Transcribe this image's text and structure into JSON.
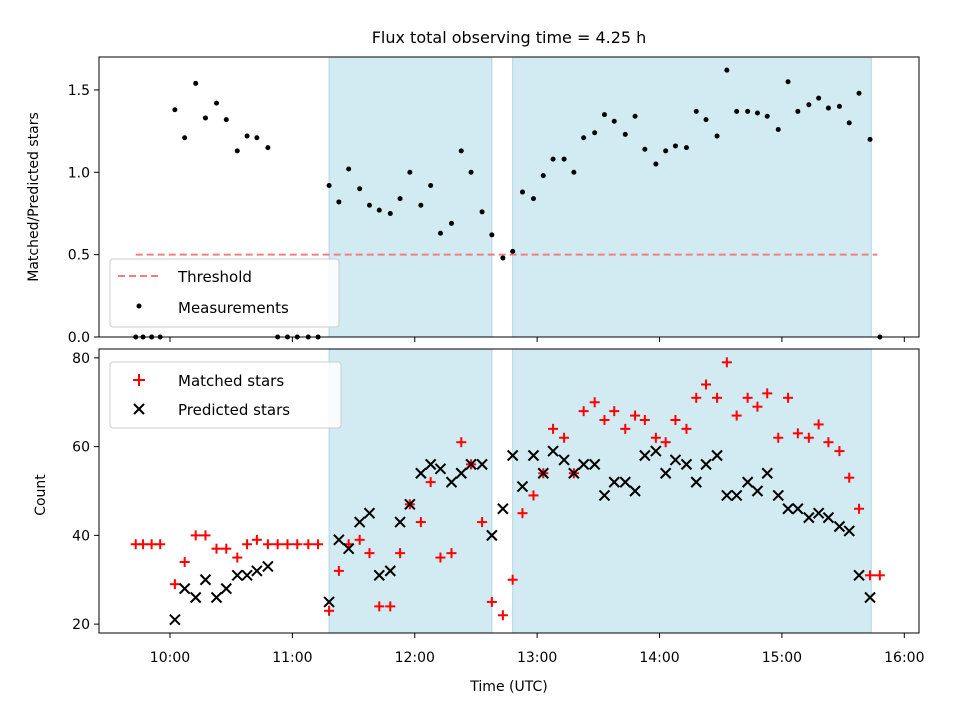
{
  "chart_data": [
    {
      "type": "scatter",
      "title": "Flux total observing time = 4.25 h",
      "ylabel": "Matched/Predicted stars",
      "xlim": [
        9.42,
        16.12
      ],
      "ylim": [
        0,
        1.7
      ],
      "x_ticks": [
        10,
        11,
        12,
        13,
        14,
        15,
        16
      ],
      "y_ticks": [
        0.0,
        0.5,
        1.0,
        1.5
      ],
      "y_tick_labels": [
        "0.0",
        "0.5",
        "1.0",
        "1.5"
      ],
      "shaded_intervals": [
        [
          11.3,
          12.63
        ],
        [
          12.8,
          15.73
        ]
      ],
      "shade_color": "#add8e6",
      "legend": {
        "location": "lower-left",
        "threshold_label": "Threshold",
        "measurements_label": "Measurements"
      },
      "threshold": {
        "value": 0.5,
        "x_start": 9.72,
        "x_end": 15.78,
        "color": "#f08080"
      },
      "measurements": {
        "color": "#000000",
        "x": [
          9.72,
          9.78,
          9.85,
          9.92,
          10.04,
          10.12,
          10.21,
          10.29,
          10.38,
          10.46,
          10.55,
          10.63,
          10.71,
          10.8,
          10.88,
          10.96,
          11.04,
          11.13,
          11.21,
          11.3,
          11.38,
          11.46,
          11.55,
          11.63,
          11.71,
          11.8,
          11.88,
          11.96,
          12.05,
          12.13,
          12.21,
          12.3,
          12.38,
          12.46,
          12.55,
          12.63,
          12.72,
          12.8,
          12.88,
          12.97,
          13.05,
          13.13,
          13.22,
          13.3,
          13.38,
          13.47,
          13.55,
          13.63,
          13.72,
          13.8,
          13.88,
          13.97,
          14.05,
          14.13,
          14.22,
          14.3,
          14.38,
          14.47,
          14.55,
          14.63,
          14.72,
          14.8,
          14.88,
          14.97,
          15.05,
          15.13,
          15.22,
          15.3,
          15.38,
          15.47,
          15.55,
          15.63,
          15.72,
          15.8
        ],
        "y": [
          0,
          0,
          0,
          0,
          1.38,
          1.21,
          1.54,
          1.33,
          1.42,
          1.32,
          1.13,
          1.22,
          1.21,
          1.15,
          0,
          0,
          0,
          0,
          0,
          0.92,
          0.82,
          1.02,
          0.9,
          0.8,
          0.77,
          0.75,
          0.84,
          1.0,
          0.8,
          0.92,
          0.63,
          0.69,
          1.13,
          1.0,
          0.76,
          0.62,
          0.48,
          0.52,
          0.88,
          0.84,
          0.98,
          1.08,
          1.08,
          1.0,
          1.21,
          1.24,
          1.35,
          1.31,
          1.23,
          1.34,
          1.14,
          1.05,
          1.13,
          1.16,
          1.15,
          1.37,
          1.32,
          1.22,
          1.62,
          1.37,
          1.37,
          1.36,
          1.34,
          1.26,
          1.55,
          1.37,
          1.41,
          1.45,
          1.39,
          1.4,
          1.3,
          1.48,
          1.2,
          0
        ]
      }
    },
    {
      "type": "scatter",
      "xlabel": "Time (UTC)",
      "ylabel": "Count",
      "xlim": [
        9.42,
        16.12
      ],
      "ylim": [
        18,
        82
      ],
      "x_ticks": [
        10,
        11,
        12,
        13,
        14,
        15,
        16
      ],
      "x_tick_labels": [
        "10:00",
        "11:00",
        "12:00",
        "13:00",
        "14:00",
        "15:00",
        "16:00"
      ],
      "y_ticks": [
        20,
        40,
        60,
        80
      ],
      "y_tick_labels": [
        "20",
        "40",
        "60",
        "80"
      ],
      "shaded_intervals": [
        [
          11.3,
          12.63
        ],
        [
          12.8,
          15.73
        ]
      ],
      "legend": {
        "location": "top-left"
      },
      "series": [
        {
          "name": "Matched stars",
          "marker": "plus",
          "color": "#ff0000",
          "x": [
            9.72,
            9.78,
            9.85,
            9.92,
            10.04,
            10.12,
            10.21,
            10.29,
            10.38,
            10.46,
            10.55,
            10.63,
            10.71,
            10.8,
            10.88,
            10.96,
            11.04,
            11.13,
            11.21,
            11.3,
            11.38,
            11.46,
            11.55,
            11.63,
            11.71,
            11.8,
            11.88,
            11.96,
            12.05,
            12.13,
            12.21,
            12.3,
            12.38,
            12.46,
            12.55,
            12.63,
            12.72,
            12.8,
            12.88,
            12.97,
            13.05,
            13.13,
            13.22,
            13.3,
            13.38,
            13.47,
            13.55,
            13.63,
            13.72,
            13.8,
            13.88,
            13.97,
            14.05,
            14.13,
            14.22,
            14.3,
            14.38,
            14.47,
            14.55,
            14.63,
            14.72,
            14.8,
            14.88,
            14.97,
            15.05,
            15.13,
            15.22,
            15.3,
            15.38,
            15.47,
            15.55,
            15.63,
            15.72,
            15.8
          ],
          "y": [
            38,
            38,
            38,
            38,
            29,
            34,
            40,
            40,
            37,
            37,
            35,
            38,
            39,
            38,
            38,
            38,
            38,
            38,
            38,
            23,
            32,
            38,
            39,
            36,
            24,
            24,
            36,
            47,
            43,
            52,
            35,
            36,
            61,
            56,
            43,
            25,
            22,
            30,
            45,
            49,
            54,
            64,
            62,
            54,
            68,
            70,
            66,
            68,
            64,
            67,
            66,
            62,
            61,
            66,
            64,
            71,
            74,
            71,
            79,
            67,
            71,
            69,
            72,
            62,
            71,
            63,
            62,
            65,
            61,
            59,
            53,
            46,
            31,
            31
          ]
        },
        {
          "name": "Predicted stars",
          "marker": "x",
          "color": "#000000",
          "x": [
            10.04,
            10.12,
            10.21,
            10.29,
            10.38,
            10.46,
            10.55,
            10.63,
            10.71,
            10.8,
            11.3,
            11.38,
            11.46,
            11.55,
            11.63,
            11.71,
            11.8,
            11.88,
            11.96,
            12.05,
            12.13,
            12.21,
            12.3,
            12.38,
            12.46,
            12.55,
            12.63,
            12.72,
            12.8,
            12.88,
            12.97,
            13.05,
            13.13,
            13.22,
            13.3,
            13.38,
            13.47,
            13.55,
            13.63,
            13.72,
            13.8,
            13.88,
            13.97,
            14.05,
            14.13,
            14.22,
            14.3,
            14.38,
            14.47,
            14.55,
            14.63,
            14.72,
            14.8,
            14.88,
            14.97,
            15.05,
            15.13,
            15.22,
            15.3,
            15.38,
            15.47,
            15.55,
            15.63,
            15.72
          ],
          "y": [
            21,
            28,
            26,
            30,
            26,
            28,
            31,
            31,
            32,
            33,
            25,
            39,
            37,
            43,
            45,
            31,
            32,
            43,
            47,
            54,
            56,
            55,
            52,
            54,
            56,
            56,
            40,
            46,
            58,
            51,
            58,
            54,
            59,
            57,
            54,
            56,
            56,
            49,
            52,
            52,
            50,
            58,
            59,
            54,
            57,
            56,
            52,
            56,
            58,
            49,
            49,
            52,
            50,
            54,
            49,
            46,
            46,
            44,
            45,
            44,
            42,
            41,
            31,
            26
          ]
        }
      ]
    }
  ]
}
